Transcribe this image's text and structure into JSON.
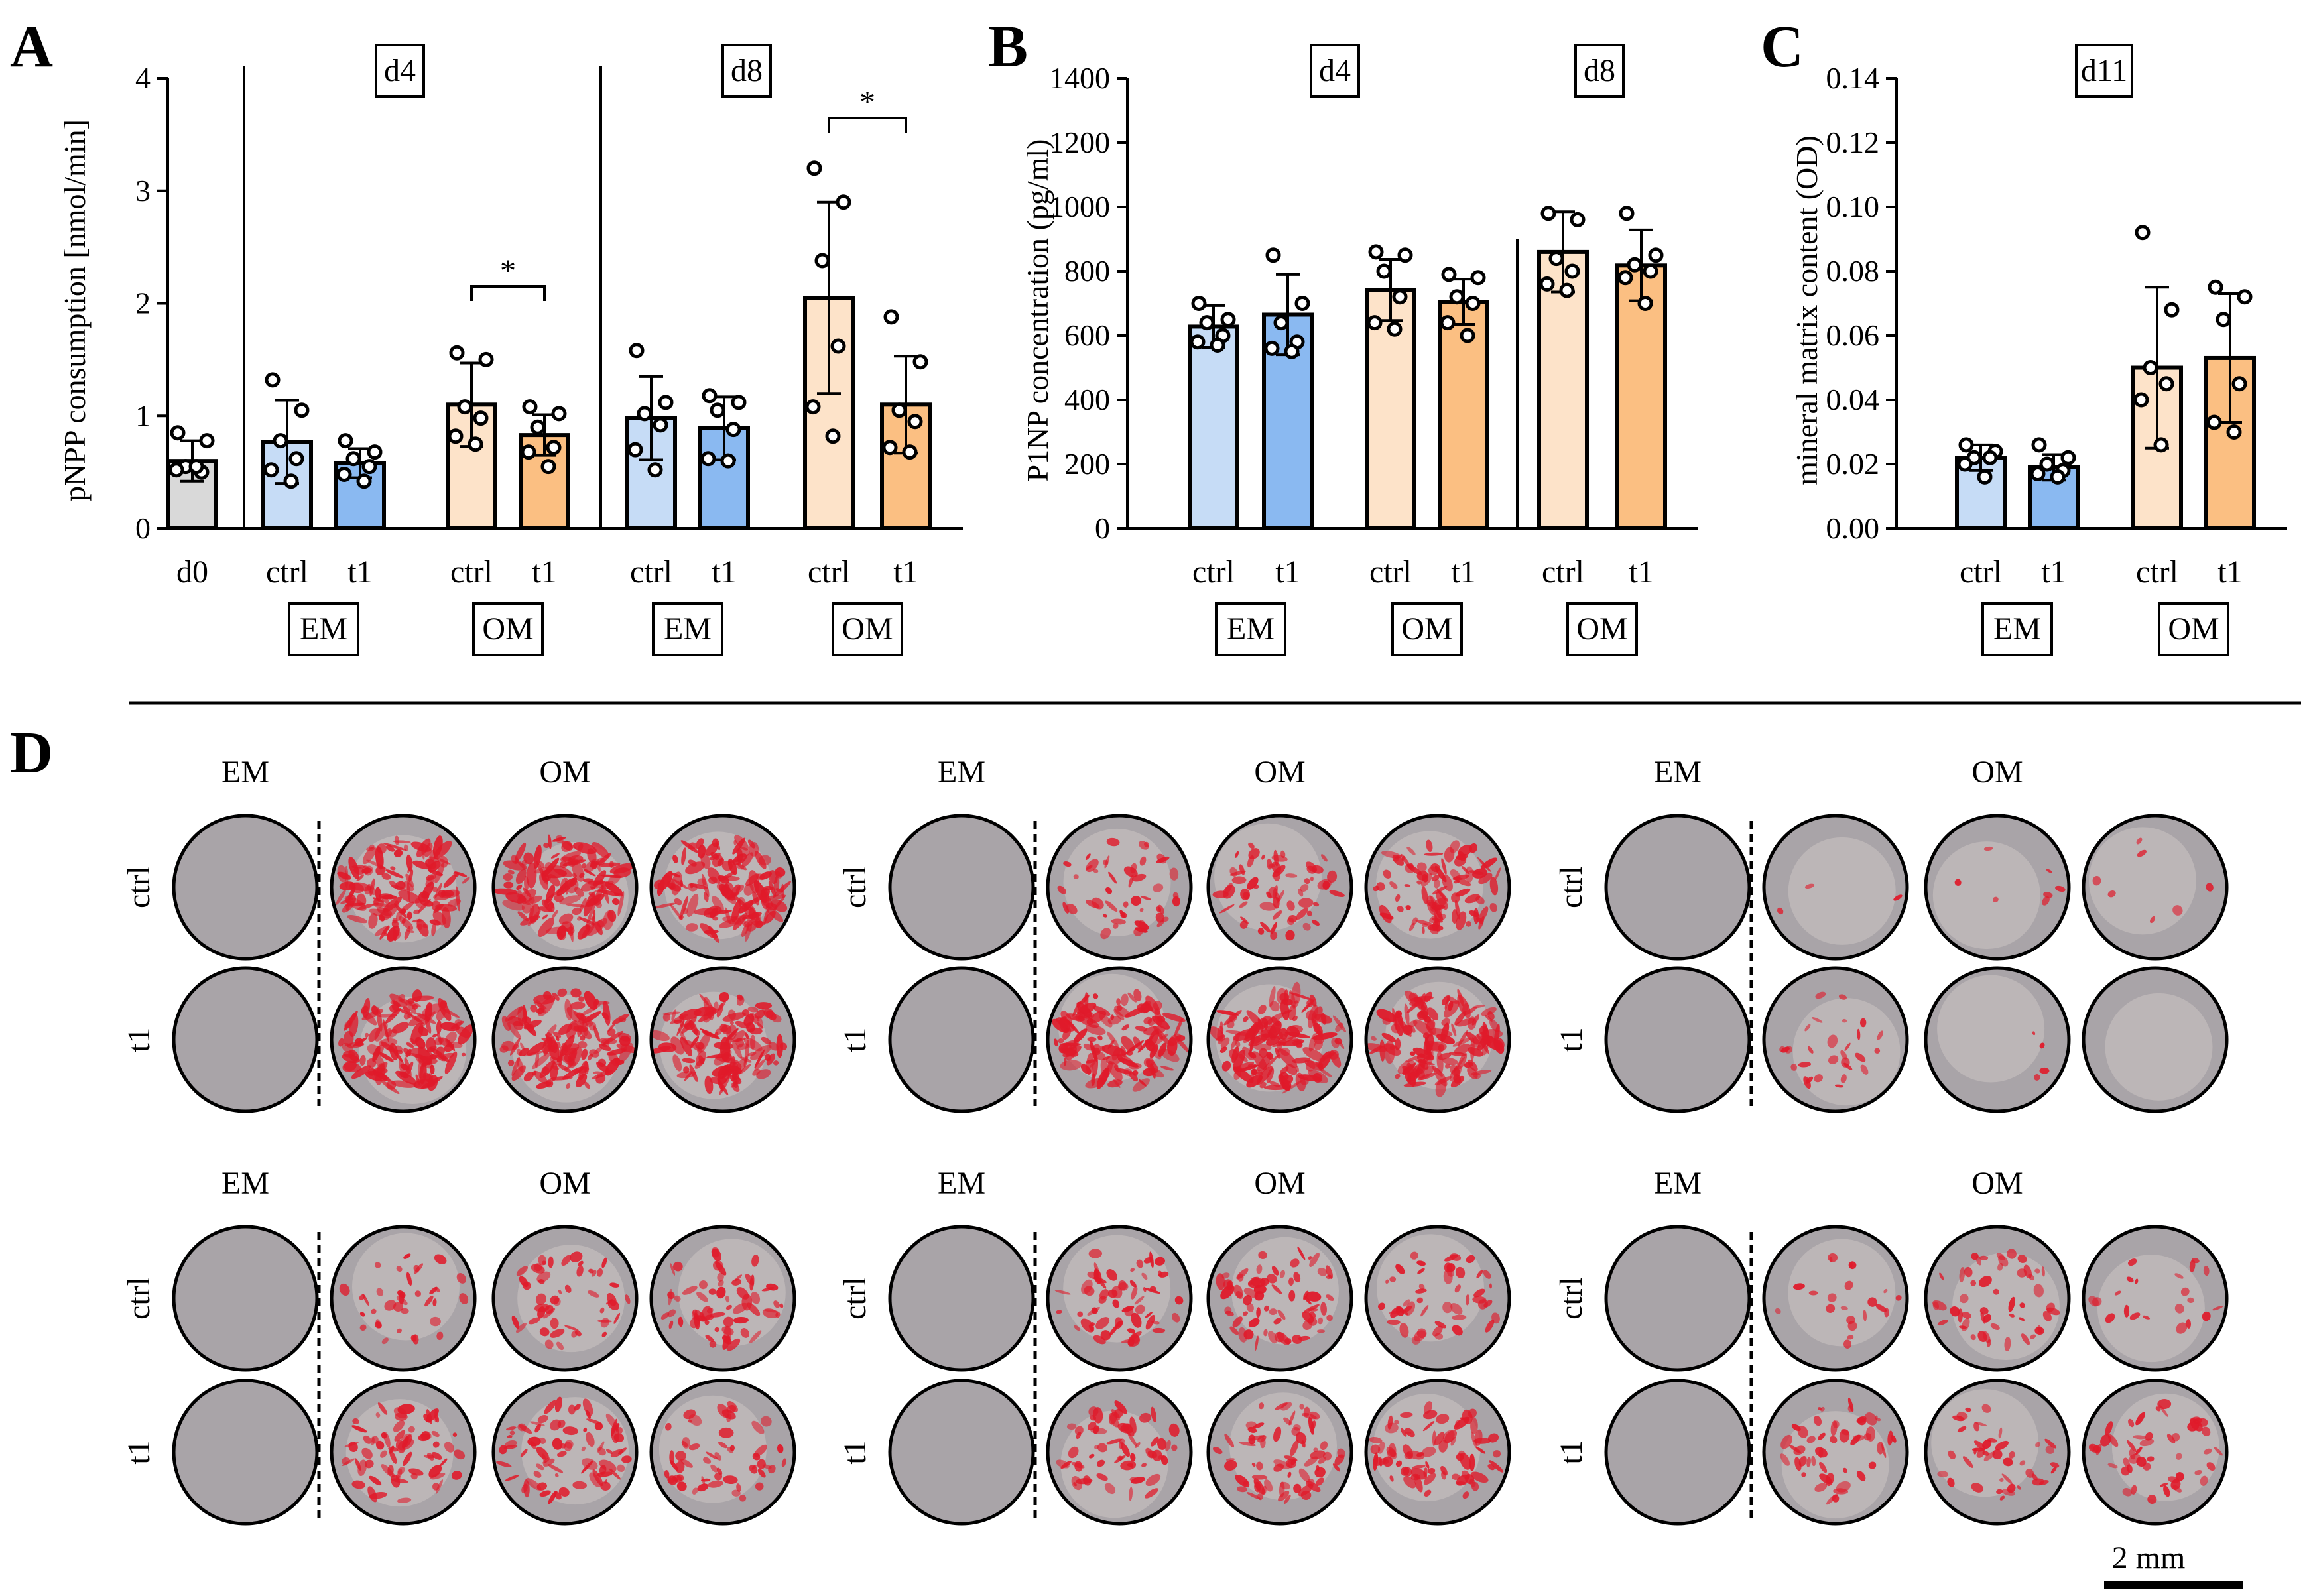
{
  "colors": {
    "grey": "#d9d9d9",
    "em_ctrl": "#c6dcf6",
    "em_t1": "#8ab9f1",
    "om_ctrl": "#fde3c9",
    "om_t1": "#fbbf82",
    "stain": "#e01a2a",
    "dish": "#a9a4a8"
  },
  "chart_data": [
    {
      "panel": "A",
      "type": "bar",
      "ylabel": "pNPP consumption [nmol/min]",
      "ylim": [
        0,
        4
      ],
      "yticks": [
        "0",
        "1",
        "2",
        "3",
        "4"
      ],
      "timepoints": [
        "d4",
        "d8"
      ],
      "groups": [
        {
          "name": "",
          "label": "d0",
          "color_key": "grey",
          "value": 0.6,
          "err": 0.18,
          "points": [
            0.85,
            0.78,
            0.55,
            0.5,
            0.52,
            0.55
          ]
        },
        {
          "name": "d4 EM",
          "label": "ctrl",
          "box": "EM",
          "color_key": "em_ctrl",
          "value": 0.77,
          "err": 0.37,
          "points": [
            1.32,
            1.05,
            0.78,
            0.62,
            0.52,
            0.42
          ]
        },
        {
          "name": "d4 EM",
          "label": "t1",
          "color_key": "em_t1",
          "value": 0.58,
          "err": 0.13,
          "points": [
            0.78,
            0.68,
            0.62,
            0.55,
            0.48,
            0.42
          ]
        },
        {
          "name": "d4 OM",
          "label": "ctrl",
          "box": "OM",
          "color_key": "om_ctrl",
          "value": 1.1,
          "err": 0.37,
          "points": [
            1.56,
            1.5,
            1.08,
            0.98,
            0.82,
            0.75
          ]
        },
        {
          "name": "d4 OM",
          "label": "t1",
          "color_key": "om_t1",
          "value": 0.83,
          "err": 0.18,
          "points": [
            1.08,
            1.02,
            0.9,
            0.72,
            0.68,
            0.55
          ]
        },
        {
          "name": "d8 EM",
          "label": "ctrl",
          "box": "EM",
          "color_key": "em_ctrl",
          "value": 0.98,
          "err": 0.37,
          "points": [
            1.58,
            1.12,
            1.02,
            0.92,
            0.7,
            0.52
          ]
        },
        {
          "name": "d8 EM",
          "label": "t1",
          "color_key": "em_t1",
          "value": 0.89,
          "err": 0.28,
          "points": [
            1.18,
            1.12,
            1.05,
            0.88,
            0.62,
            0.6
          ]
        },
        {
          "name": "d8 OM",
          "label": "ctrl",
          "box": "OM",
          "color_key": "om_ctrl",
          "value": 2.05,
          "err": 0.85,
          "points": [
            3.2,
            2.9,
            2.38,
            1.62,
            1.08,
            0.82
          ]
        },
        {
          "name": "d8 OM",
          "label": "t1",
          "color_key": "om_t1",
          "value": 1.1,
          "err": 0.43,
          "points": [
            1.88,
            1.48,
            1.05,
            0.95,
            0.72,
            0.68
          ]
        }
      ],
      "significance": [
        {
          "pair": [
            "d4 OM ctrl",
            "d4 OM t1"
          ],
          "symbol": "*"
        },
        {
          "pair": [
            "d8 OM ctrl",
            "d8 OM t1"
          ],
          "symbol": "*"
        }
      ]
    },
    {
      "panel": "B",
      "type": "bar",
      "ylabel": "P1NP concentration (pg/ml)",
      "ylim": [
        0,
        1400
      ],
      "yticks": [
        "0",
        "200",
        "400",
        "600",
        "800",
        "1000",
        "1200",
        "1400"
      ],
      "timepoints": [
        "d4",
        "d8"
      ],
      "groups": [
        {
          "name": "EM",
          "label": "ctrl",
          "box": "EM",
          "color_key": "em_ctrl",
          "value": 628,
          "err": 65,
          "points": [
            700,
            650,
            640,
            600,
            580,
            570
          ]
        },
        {
          "name": "EM",
          "label": "t1",
          "color_key": "em_t1",
          "value": 665,
          "err": 125,
          "points": [
            850,
            700,
            640,
            580,
            560,
            550
          ]
        },
        {
          "name": "d4 OM",
          "label": "ctrl",
          "box": "OM",
          "color_key": "om_ctrl",
          "value": 742,
          "err": 95,
          "points": [
            860,
            850,
            800,
            720,
            640,
            620
          ]
        },
        {
          "name": "d4 OM",
          "label": "t1",
          "color_key": "om_t1",
          "value": 705,
          "err": 70,
          "points": [
            790,
            780,
            720,
            700,
            640,
            600
          ]
        },
        {
          "name": "d8 OM",
          "label": "ctrl",
          "box": "OM",
          "color_key": "om_ctrl",
          "value": 860,
          "err": 125,
          "points": [
            980,
            960,
            840,
            800,
            760,
            740
          ]
        },
        {
          "name": "d8 OM",
          "label": "t1",
          "color_key": "om_t1",
          "value": 818,
          "err": 110,
          "points": [
            980,
            850,
            820,
            800,
            780,
            700
          ]
        }
      ]
    },
    {
      "panel": "C",
      "type": "bar",
      "ylabel": "mineral matrix content (OD)",
      "ylim": [
        0,
        0.14
      ],
      "yticks": [
        "0.00",
        "0.02",
        "0.04",
        "0.06",
        "0.08",
        "0.10",
        "0.12",
        "0.14"
      ],
      "timepoints": [
        "d11"
      ],
      "groups": [
        {
          "name": "EM",
          "label": "ctrl",
          "box": "EM",
          "color_key": "em_ctrl",
          "value": 0.022,
          "err": 0.004,
          "points": [
            0.026,
            0.024,
            0.022,
            0.022,
            0.02,
            0.016
          ]
        },
        {
          "name": "EM",
          "label": "t1",
          "color_key": "em_t1",
          "value": 0.019,
          "err": 0.004,
          "points": [
            0.026,
            0.022,
            0.02,
            0.018,
            0.017,
            0.016
          ]
        },
        {
          "name": "OM",
          "label": "ctrl",
          "box": "OM",
          "color_key": "om_ctrl",
          "value": 0.05,
          "err": 0.025,
          "points": [
            0.092,
            0.068,
            0.05,
            0.045,
            0.04,
            0.026
          ]
        },
        {
          "name": "OM",
          "label": "t1",
          "color_key": "om_t1",
          "value": 0.053,
          "err": 0.02,
          "points": [
            0.075,
            0.072,
            0.065,
            0.045,
            0.033,
            0.03
          ]
        }
      ]
    }
  ],
  "panel_d": {
    "letter": "D",
    "col_labels": [
      "EM",
      "OM"
    ],
    "row_labels": [
      "ctrl",
      "t1"
    ],
    "scale_label": "2 mm",
    "stain_levels": [
      [
        [
          0.95,
          1.0,
          0.95
        ],
        [
          0.95,
          0.95,
          0.9
        ]
      ],
      [
        [
          0.35,
          0.45,
          0.65
        ],
        [
          0.9,
          1.0,
          0.95
        ]
      ],
      [
        [
          0.02,
          0.05,
          0.05
        ],
        [
          0.2,
          0.03,
          0.0
        ]
      ],
      [
        [
          0.25,
          0.35,
          0.45
        ],
        [
          0.5,
          0.55,
          0.4
        ]
      ],
      [
        [
          0.45,
          0.5,
          0.35
        ],
        [
          0.45,
          0.5,
          0.55
        ]
      ],
      [
        [
          0.15,
          0.35,
          0.15
        ],
        [
          0.35,
          0.3,
          0.35
        ]
      ]
    ]
  }
}
